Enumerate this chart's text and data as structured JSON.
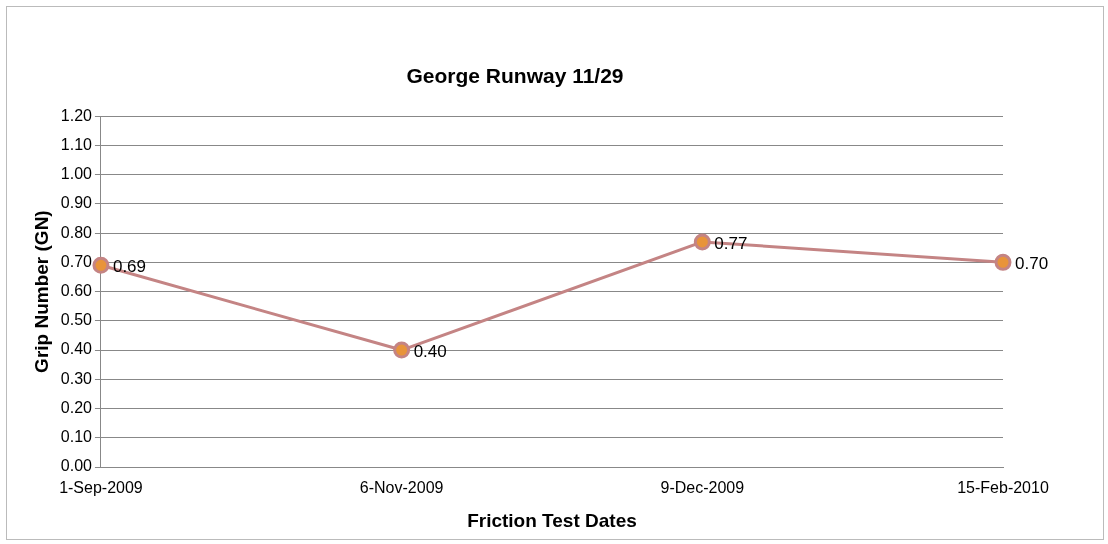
{
  "chart_data": {
    "type": "line",
    "title": "George Runway 11/29",
    "xlabel": "Friction Test Dates",
    "ylabel": "Grip Number (GN)",
    "categories": [
      "1-Sep-2009",
      "6-Nov-2009",
      "9-Dec-2009",
      "15-Feb-2010"
    ],
    "series": [
      {
        "color": "#c48484",
        "values": [
          0.69,
          0.4,
          0.77,
          0.7
        ],
        "value_labels": [
          "0.69",
          "0.40",
          "0.77",
          "0.70"
        ]
      }
    ],
    "ylim": [
      0,
      1.2
    ],
    "yticks": [
      {
        "value": 0,
        "label": "0.00"
      },
      {
        "value": 0.1,
        "label": "0.10"
      },
      {
        "value": 0.2,
        "label": "0.20"
      },
      {
        "value": 0.3,
        "label": "0.30"
      },
      {
        "value": 0.4,
        "label": "0.40"
      },
      {
        "value": 0.5,
        "label": "0.50"
      },
      {
        "value": 0.6,
        "label": "0.60"
      },
      {
        "value": 0.7,
        "label": "0.70"
      },
      {
        "value": 0.8,
        "label": "0.80"
      },
      {
        "value": 0.9,
        "label": "0.90"
      },
      {
        "value": 1,
        "label": "1.00"
      },
      {
        "value": 1.1,
        "label": "1.10"
      },
      {
        "value": 1.2,
        "label": "1.20"
      }
    ],
    "grid": "y",
    "legend": false,
    "marker": "circle",
    "line_style": "solid"
  }
}
